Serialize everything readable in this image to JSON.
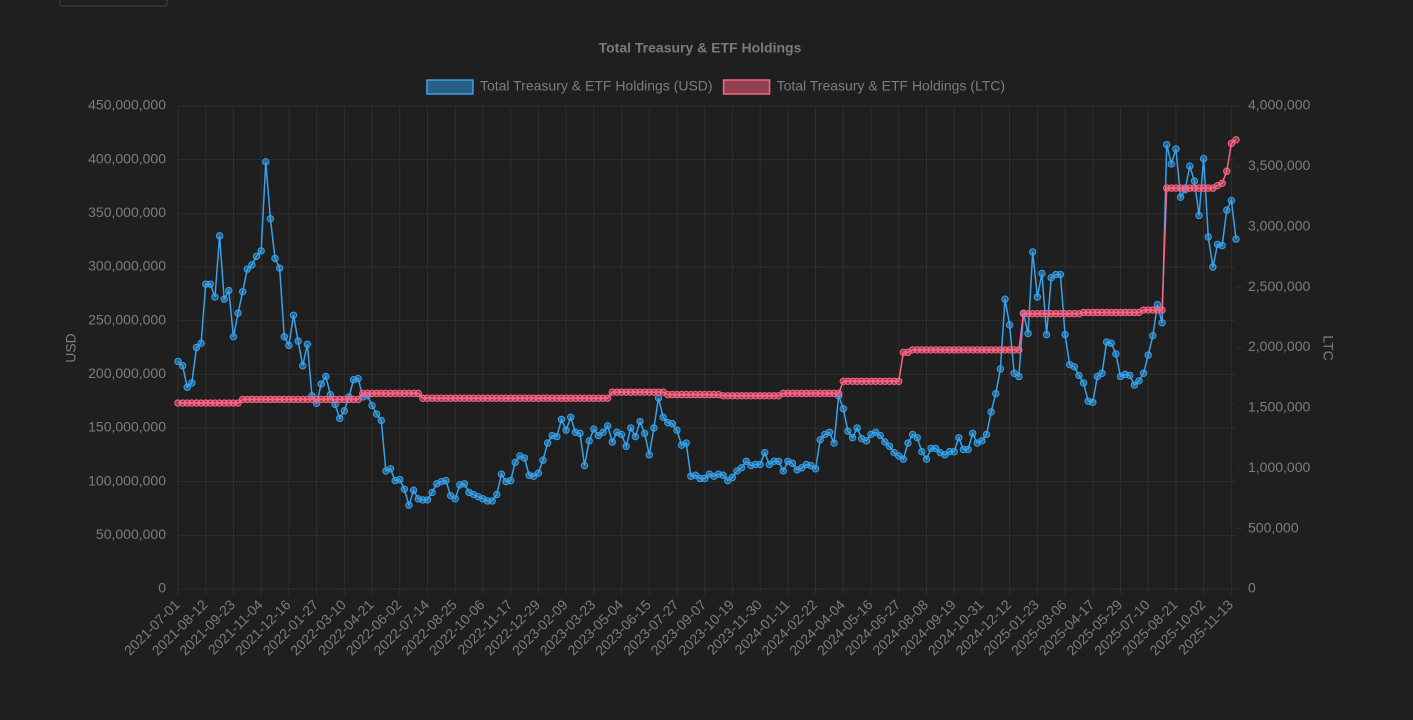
{
  "chart_data": {
    "type": "line",
    "title": "Total Treasury & ETF Holdings",
    "ylabel": "USD",
    "y2label": "LTC",
    "x": [
      "2021-07-01",
      "2021-07-08",
      "2021-07-15",
      "2021-07-22",
      "2021-07-29",
      "2021-08-05",
      "2021-08-12",
      "2021-08-19",
      "2021-08-26",
      "2021-09-02",
      "2021-09-09",
      "2021-09-16",
      "2021-09-23",
      "2021-09-30",
      "2021-10-07",
      "2021-10-14",
      "2021-10-21",
      "2021-10-28",
      "2021-11-04",
      "2021-11-11",
      "2021-11-18",
      "2021-11-25",
      "2021-12-02",
      "2021-12-09",
      "2021-12-16",
      "2021-12-23",
      "2021-12-30",
      "2022-01-06",
      "2022-01-13",
      "2022-01-20",
      "2022-01-27",
      "2022-02-03",
      "2022-02-10",
      "2022-02-17",
      "2022-02-24",
      "2022-03-03",
      "2022-03-10",
      "2022-03-17",
      "2022-03-24",
      "2022-03-31",
      "2022-04-07",
      "2022-04-14",
      "2022-04-21",
      "2022-04-28",
      "2022-05-05",
      "2022-05-12",
      "2022-05-19",
      "2022-05-26",
      "2022-06-02",
      "2022-06-09",
      "2022-06-16",
      "2022-06-23",
      "2022-06-30",
      "2022-07-07",
      "2022-07-14",
      "2022-07-21",
      "2022-07-28",
      "2022-08-04",
      "2022-08-11",
      "2022-08-18",
      "2022-08-25",
      "2022-09-01",
      "2022-09-08",
      "2022-09-15",
      "2022-09-22",
      "2022-09-29",
      "2022-10-06",
      "2022-10-13",
      "2022-10-20",
      "2022-10-27",
      "2022-11-03",
      "2022-11-10",
      "2022-11-17",
      "2022-11-24",
      "2022-12-01",
      "2022-12-08",
      "2022-12-15",
      "2022-12-22",
      "2022-12-29",
      "2023-01-05",
      "2023-01-12",
      "2023-01-19",
      "2023-01-26",
      "2023-02-02",
      "2023-02-09",
      "2023-02-16",
      "2023-02-23",
      "2023-03-02",
      "2023-03-09",
      "2023-03-16",
      "2023-03-23",
      "2023-03-30",
      "2023-04-06",
      "2023-04-13",
      "2023-04-20",
      "2023-04-27",
      "2023-05-04",
      "2023-05-11",
      "2023-05-18",
      "2023-05-25",
      "2023-06-01",
      "2023-06-08",
      "2023-06-15",
      "2023-06-22",
      "2023-06-29",
      "2023-07-06",
      "2023-07-13",
      "2023-07-20",
      "2023-07-27",
      "2023-08-03",
      "2023-08-10",
      "2023-08-17",
      "2023-08-24",
      "2023-08-31",
      "2023-09-07",
      "2023-09-14",
      "2023-09-21",
      "2023-09-28",
      "2023-10-05",
      "2023-10-12",
      "2023-10-19",
      "2023-10-26",
      "2023-11-02",
      "2023-11-09",
      "2023-11-16",
      "2023-11-23",
      "2023-11-30",
      "2023-12-07",
      "2023-12-14",
      "2023-12-21",
      "2023-12-28",
      "2024-01-04",
      "2024-01-11",
      "2024-01-18",
      "2024-01-25",
      "2024-02-01",
      "2024-02-08",
      "2024-02-15",
      "2024-02-22",
      "2024-02-29",
      "2024-03-07",
      "2024-03-14",
      "2024-03-21",
      "2024-03-28",
      "2024-04-04",
      "2024-04-11",
      "2024-04-18",
      "2024-04-25",
      "2024-05-02",
      "2024-05-09",
      "2024-05-16",
      "2024-05-23",
      "2024-05-30",
      "2024-06-06",
      "2024-06-13",
      "2024-06-20",
      "2024-06-27",
      "2024-07-04",
      "2024-07-11",
      "2024-07-18",
      "2024-07-25",
      "2024-08-01",
      "2024-08-08",
      "2024-08-15",
      "2024-08-22",
      "2024-08-29",
      "2024-09-05",
      "2024-09-12",
      "2024-09-19",
      "2024-09-26",
      "2024-10-03",
      "2024-10-10",
      "2024-10-17",
      "2024-10-24",
      "2024-10-31",
      "2024-11-07",
      "2024-11-14",
      "2024-11-21",
      "2024-11-28",
      "2024-12-05",
      "2024-12-12",
      "2024-12-19",
      "2024-12-26",
      "2025-01-02",
      "2025-01-09",
      "2025-01-16",
      "2025-01-23",
      "2025-01-30",
      "2025-02-06",
      "2025-02-13",
      "2025-02-20",
      "2025-02-27",
      "2025-03-06",
      "2025-03-13",
      "2025-03-20",
      "2025-03-27",
      "2025-04-03",
      "2025-04-10",
      "2025-04-17",
      "2025-04-24",
      "2025-05-01",
      "2025-05-08",
      "2025-05-15",
      "2025-05-22",
      "2025-05-29",
      "2025-06-05",
      "2025-06-12",
      "2025-06-19",
      "2025-06-26",
      "2025-07-03",
      "2025-07-10",
      "2025-07-17",
      "2025-07-24",
      "2025-07-31",
      "2025-08-07",
      "2025-08-14",
      "2025-08-21",
      "2025-08-28",
      "2025-09-04",
      "2025-09-11",
      "2025-09-18",
      "2025-09-25",
      "2025-10-02",
      "2025-10-09",
      "2025-10-16",
      "2025-10-23",
      "2025-10-30",
      "2025-11-06",
      "2025-11-13",
      "2025-11-20"
    ],
    "xticks": [
      "2021-07-01",
      "2021-08-12",
      "2021-09-23",
      "2021-11-04",
      "2021-12-16",
      "2022-01-27",
      "2022-03-10",
      "2022-04-21",
      "2022-06-02",
      "2022-07-14",
      "2022-08-25",
      "2022-10-06",
      "2022-11-17",
      "2022-12-29",
      "2023-02-09",
      "2023-03-23",
      "2023-05-04",
      "2023-06-15",
      "2023-07-27",
      "2023-09-07",
      "2023-10-19",
      "2023-11-30",
      "2024-01-11",
      "2024-02-22",
      "2024-04-04",
      "2024-05-16",
      "2024-06-27",
      "2024-08-08",
      "2024-09-19",
      "2024-10-31",
      "2024-12-12",
      "2025-01-23",
      "2025-03-06",
      "2025-04-17",
      "2025-05-29",
      "2025-07-10",
      "2025-08-21",
      "2025-10-02",
      "2025-11-13"
    ],
    "ylim": [
      0,
      450000000
    ],
    "yticks": [
      {
        "value": 0,
        "label": "0"
      },
      {
        "value": 50000000,
        "label": "50,000,000"
      },
      {
        "value": 100000000,
        "label": "100,000,000"
      },
      {
        "value": 150000000,
        "label": "150,000,000"
      },
      {
        "value": 200000000,
        "label": "200,000,000"
      },
      {
        "value": 250000000,
        "label": "250,000,000"
      },
      {
        "value": 300000000,
        "label": "300,000,000"
      },
      {
        "value": 350000000,
        "label": "350,000,000"
      },
      {
        "value": 400000000,
        "label": "400,000,000"
      },
      {
        "value": 450000000,
        "label": "450,000,000"
      }
    ],
    "y2lim": [
      0,
      4000000
    ],
    "y2ticks": [
      {
        "value": 0,
        "label": "0"
      },
      {
        "value": 500000,
        "label": "500,000"
      },
      {
        "value": 1000000,
        "label": "1,000,000"
      },
      {
        "value": 1500000,
        "label": "1,500,000"
      },
      {
        "value": 2000000,
        "label": "2,000,000"
      },
      {
        "value": 2500000,
        "label": "2,500,000"
      },
      {
        "value": 3000000,
        "label": "3,000,000"
      },
      {
        "value": 3500000,
        "label": "3,500,000"
      },
      {
        "value": 4000000,
        "label": "4,000,000"
      }
    ],
    "grid": true,
    "legend": "top",
    "series": [
      {
        "name": "Total Treasury & ETF Holdings (USD)",
        "color": "#36a2eb",
        "axis": "y",
        "values": [
          212000000,
          208000000,
          188000000,
          192000000,
          225000000,
          229000000,
          284000000,
          284000000,
          272000000,
          329000000,
          270000000,
          278000000,
          235000000,
          257000000,
          277000000,
          298000000,
          302000000,
          310000000,
          315000000,
          398000000,
          345000000,
          308000000,
          299000000,
          235000000,
          227000000,
          255000000,
          231000000,
          208000000,
          228000000,
          180000000,
          173000000,
          191000000,
          198000000,
          181000000,
          172000000,
          159000000,
          166000000,
          179000000,
          195000000,
          196000000,
          179000000,
          180000000,
          171000000,
          163000000,
          157000000,
          110000000,
          112000000,
          101000000,
          102000000,
          93000000,
          78000000,
          92000000,
          84000000,
          83000000,
          83000000,
          90000000,
          98000000,
          100000000,
          101000000,
          87000000,
          84000000,
          97000000,
          98000000,
          90000000,
          88000000,
          86000000,
          84000000,
          82000000,
          82000000,
          88000000,
          107000000,
          100000000,
          101000000,
          118000000,
          124000000,
          122000000,
          106000000,
          105000000,
          108000000,
          120000000,
          136000000,
          143000000,
          142000000,
          158000000,
          148000000,
          160000000,
          146000000,
          145000000,
          115000000,
          138000000,
          149000000,
          143000000,
          146000000,
          152000000,
          137000000,
          146000000,
          144000000,
          133000000,
          150000000,
          142000000,
          156000000,
          145000000,
          125000000,
          150000000,
          178000000,
          160000000,
          155000000,
          154000000,
          148000000,
          134000000,
          136000000,
          105000000,
          106000000,
          103000000,
          103000000,
          107000000,
          105000000,
          107000000,
          106000000,
          101000000,
          104000000,
          110000000,
          113000000,
          119000000,
          115000000,
          116000000,
          116000000,
          127000000,
          116000000,
          119000000,
          119000000,
          110000000,
          119000000,
          117000000,
          111000000,
          113000000,
          116000000,
          115000000,
          112000000,
          139000000,
          144000000,
          146000000,
          136000000,
          180000000,
          168000000,
          147000000,
          141000000,
          150000000,
          140000000,
          138000000,
          144000000,
          146000000,
          143000000,
          137000000,
          133000000,
          127000000,
          124000000,
          121000000,
          136000000,
          144000000,
          141000000,
          128000000,
          121000000,
          131000000,
          131000000,
          127000000,
          125000000,
          128000000,
          128000000,
          141000000,
          130000000,
          130000000,
          145000000,
          136000000,
          138000000,
          144000000,
          165000000,
          182000000,
          205000000,
          270000000,
          246000000,
          201000000,
          198000000,
          257000000,
          238000000,
          314000000,
          272000000,
          294000000,
          237000000,
          290000000,
          293000000,
          293000000,
          237000000,
          209000000,
          207000000,
          199000000,
          192000000,
          175000000,
          174000000,
          198000000,
          201000000,
          230000000,
          229000000,
          219000000,
          198000000,
          200000000,
          199000000,
          190000000,
          194000000,
          201000000,
          218000000,
          236000000,
          265000000,
          248000000,
          414000000,
          396000000,
          410000000,
          365000000,
          372000000,
          394000000,
          380000000,
          348000000,
          401000000,
          328000000,
          300000000,
          321000000,
          320000000,
          353000000,
          362000000,
          326000000
        ]
      },
      {
        "name": "Total Treasury & ETF Holdings (LTC)",
        "color": "#ff6384",
        "axis": "y2",
        "values": [
          1540000,
          1540000,
          1540000,
          1540000,
          1540000,
          1540000,
          1540000,
          1540000,
          1540000,
          1540000,
          1540000,
          1540000,
          1540000,
          1540000,
          1570000,
          1570000,
          1570000,
          1570000,
          1570000,
          1570000,
          1570000,
          1570000,
          1570000,
          1570000,
          1570000,
          1570000,
          1570000,
          1570000,
          1570000,
          1570000,
          1570000,
          1570000,
          1570000,
          1570000,
          1570000,
          1570000,
          1570000,
          1570000,
          1570000,
          1570000,
          1620000,
          1620000,
          1620000,
          1620000,
          1620000,
          1620000,
          1620000,
          1620000,
          1620000,
          1620000,
          1620000,
          1620000,
          1620000,
          1580000,
          1580000,
          1580000,
          1580000,
          1580000,
          1580000,
          1580000,
          1580000,
          1580000,
          1580000,
          1580000,
          1580000,
          1580000,
          1580000,
          1580000,
          1580000,
          1580000,
          1580000,
          1580000,
          1580000,
          1580000,
          1580000,
          1580000,
          1580000,
          1580000,
          1580000,
          1580000,
          1580000,
          1580000,
          1580000,
          1580000,
          1580000,
          1580000,
          1580000,
          1580000,
          1580000,
          1580000,
          1580000,
          1580000,
          1580000,
          1580000,
          1630000,
          1630000,
          1630000,
          1630000,
          1630000,
          1630000,
          1630000,
          1630000,
          1630000,
          1630000,
          1630000,
          1630000,
          1610000,
          1610000,
          1610000,
          1610000,
          1610000,
          1610000,
          1610000,
          1610000,
          1610000,
          1610000,
          1610000,
          1610000,
          1600000,
          1600000,
          1600000,
          1600000,
          1600000,
          1600000,
          1600000,
          1600000,
          1600000,
          1600000,
          1600000,
          1600000,
          1600000,
          1620000,
          1620000,
          1620000,
          1620000,
          1620000,
          1620000,
          1620000,
          1620000,
          1620000,
          1620000,
          1620000,
          1620000,
          1620000,
          1720000,
          1720000,
          1720000,
          1720000,
          1720000,
          1720000,
          1720000,
          1720000,
          1720000,
          1720000,
          1720000,
          1720000,
          1720000,
          1960000,
          1960000,
          1980000,
          1980000,
          1980000,
          1980000,
          1980000,
          1980000,
          1980000,
          1980000,
          1980000,
          1980000,
          1980000,
          1980000,
          1980000,
          1980000,
          1980000,
          1980000,
          1980000,
          1980000,
          1980000,
          1980000,
          1980000,
          1980000,
          1980000,
          1980000,
          2280000,
          2280000,
          2280000,
          2280000,
          2280000,
          2280000,
          2280000,
          2280000,
          2280000,
          2280000,
          2280000,
          2280000,
          2280000,
          2290000,
          2290000,
          2290000,
          2290000,
          2290000,
          2290000,
          2290000,
          2290000,
          2290000,
          2290000,
          2290000,
          2290000,
          2290000,
          2310000,
          2310000,
          2310000,
          2310000,
          2310000,
          3320000,
          3320000,
          3320000,
          3320000,
          3320000,
          3320000,
          3320000,
          3320000,
          3320000,
          3320000,
          3320000,
          3340000,
          3360000,
          3460000,
          3690000,
          3720000
        ]
      }
    ]
  }
}
